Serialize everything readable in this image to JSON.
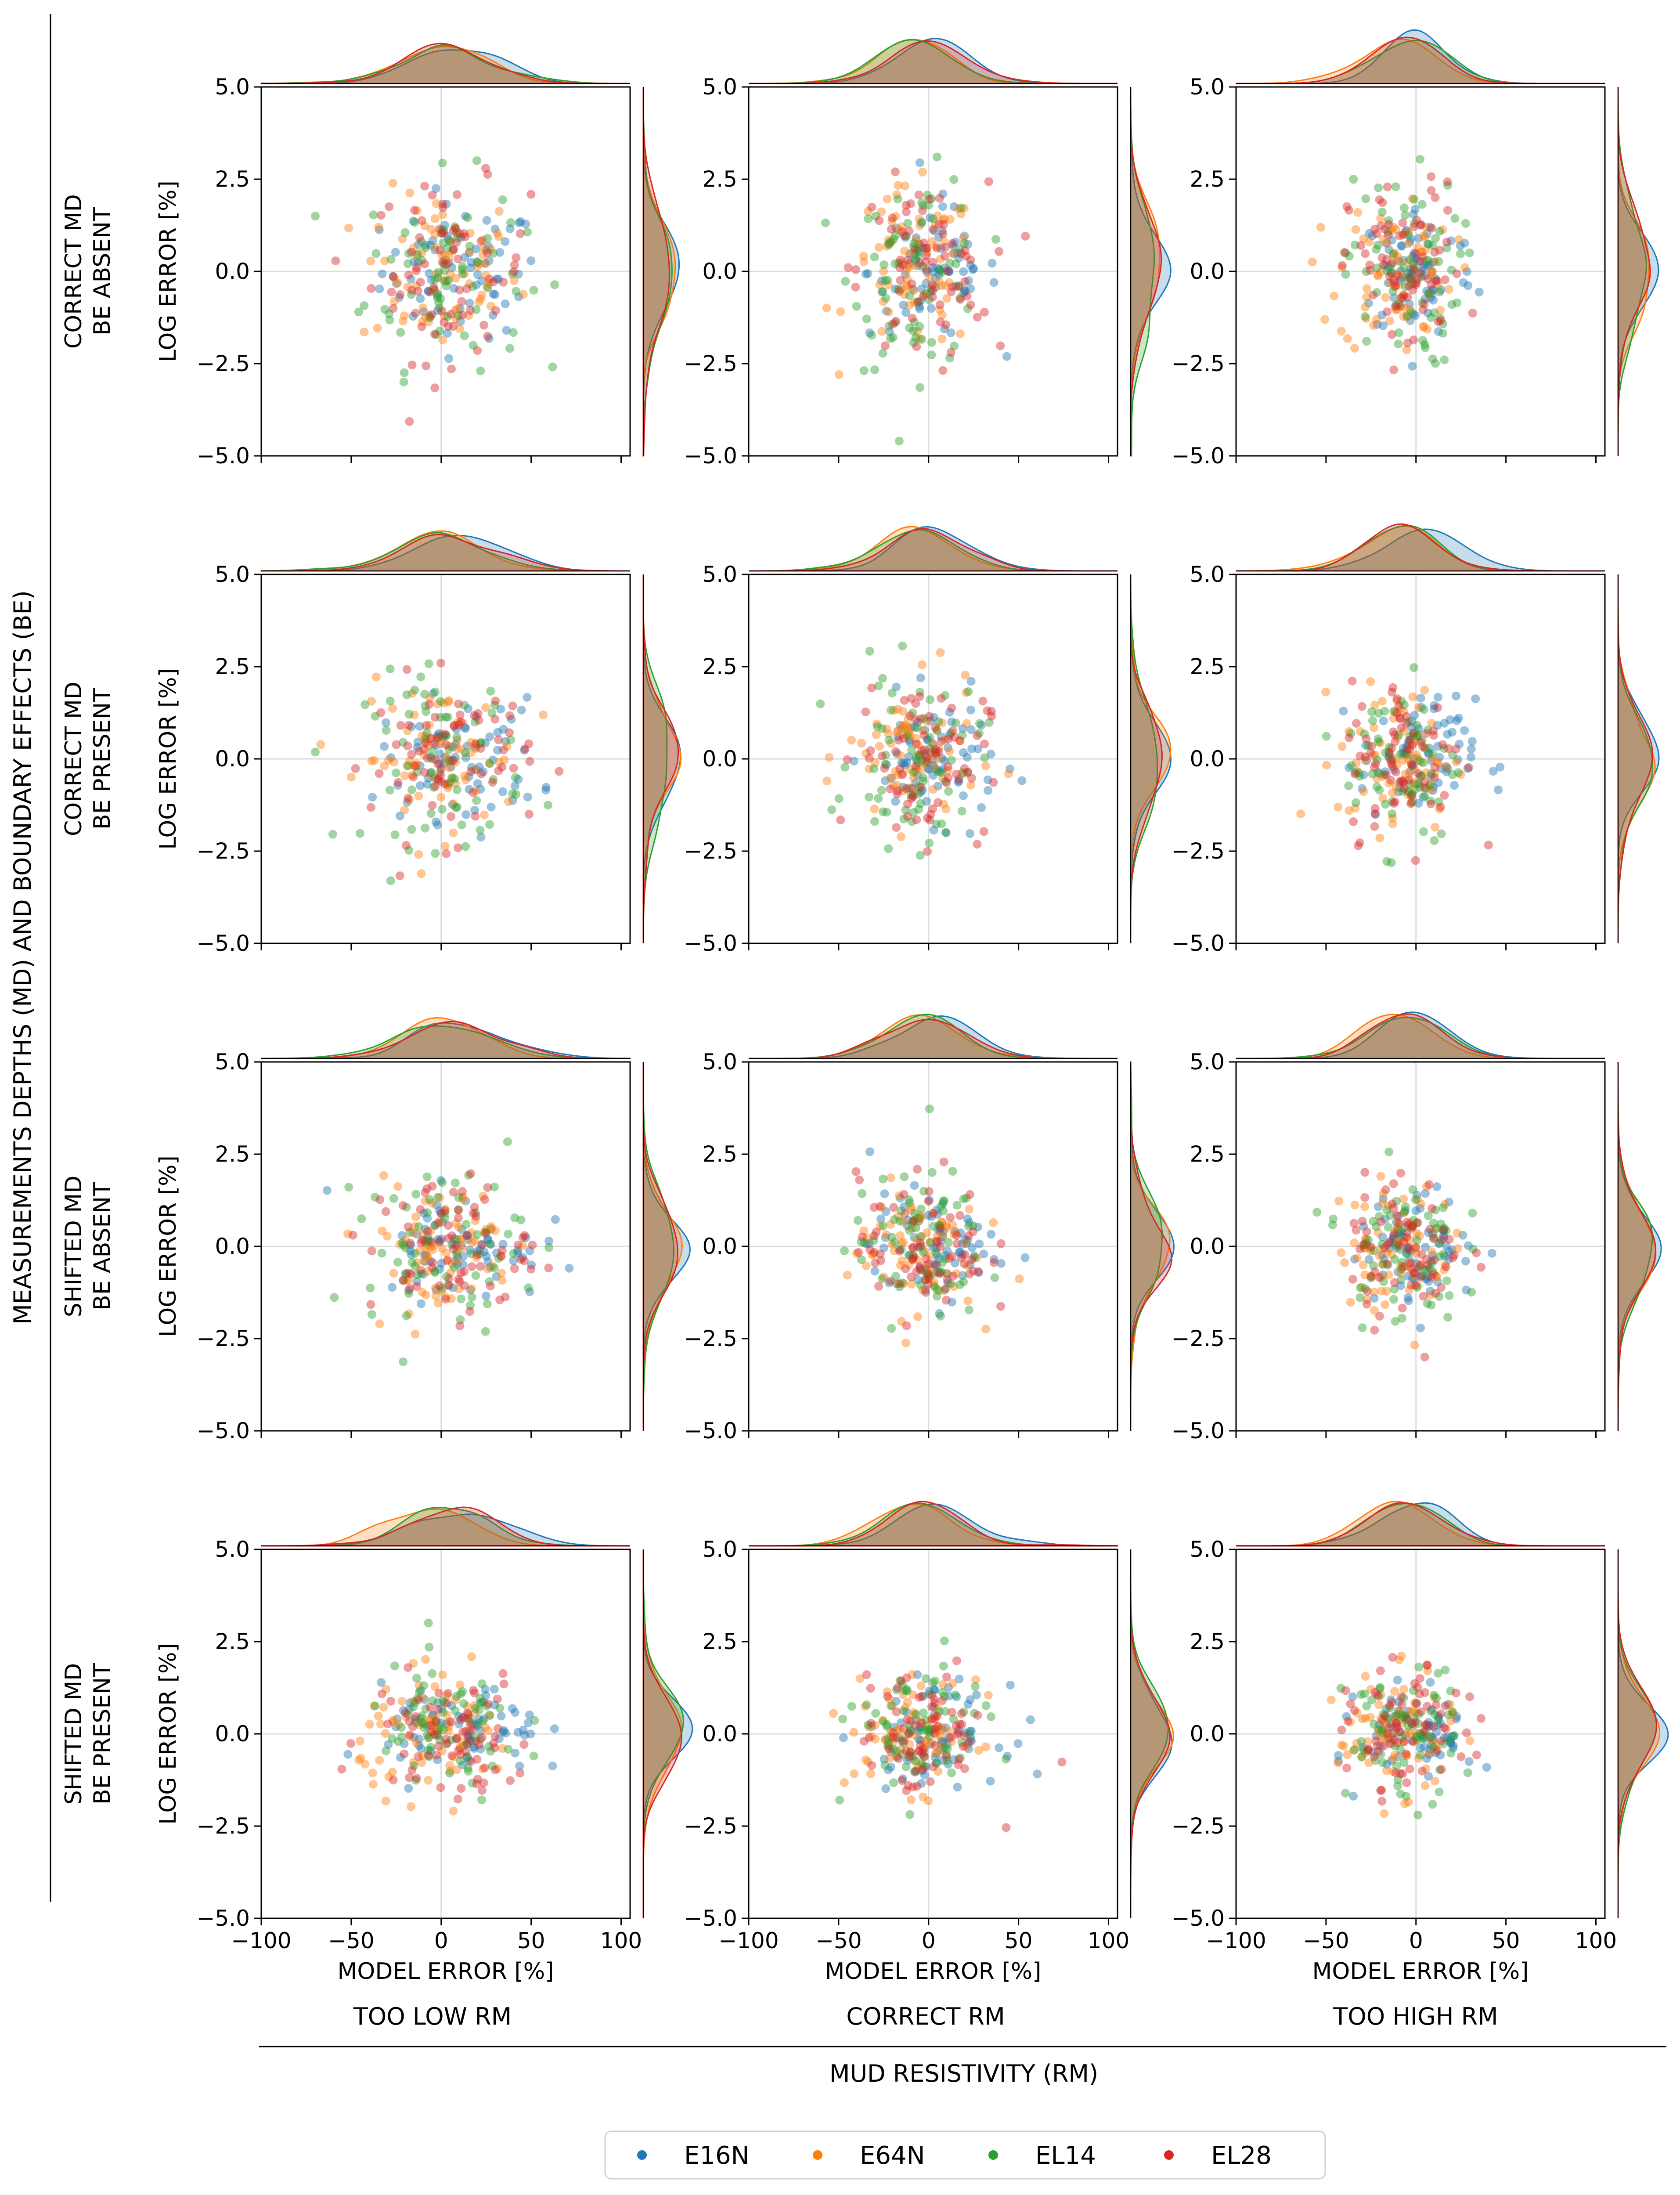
{
  "figure": {
    "y_group_title": "MEASUREMENTS DEPTHS (MD) AND BOUNDARY EFFECTS (BE)",
    "x_group_title": "MUD RESISTIVITY (RM)"
  },
  "legend": [
    {
      "name": "E16N",
      "color": "#1f77b4"
    },
    {
      "name": "E64N",
      "color": "#ff7f0e"
    },
    {
      "name": "EL14",
      "color": "#2ca02c"
    },
    {
      "name": "EL28",
      "color": "#d62728"
    }
  ],
  "chart_data": {
    "type": "scatter",
    "layout": "4x3 grid of joint plots with marginal KDE curves",
    "rows": [
      {
        "label_line1": "CORRECT MD",
        "label_line2": "BE ABSENT"
      },
      {
        "label_line1": "CORRECT MD",
        "label_line2": "BE PRESENT"
      },
      {
        "label_line1": "SHIFTED MD",
        "label_line2": "BE ABSENT"
      },
      {
        "label_line1": "SHIFTED MD",
        "label_line2": "BE PRESENT"
      }
    ],
    "columns": [
      {
        "label": "TOO LOW RM",
        "x_center": 5,
        "x_spread": 22
      },
      {
        "label": "CORRECT RM",
        "x_center": -3,
        "x_spread": 18
      },
      {
        "label": "TOO HIGH RM",
        "x_center": -5,
        "x_spread": 16
      }
    ],
    "xlabel": "MODEL ERROR [%]",
    "ylabel": "LOG ERROR [%]",
    "xlim": [
      -100,
      105
    ],
    "ylim": [
      -5,
      5
    ],
    "xticks": [
      -100,
      -50,
      0,
      50,
      100
    ],
    "xtick_labels": [
      "−100",
      "−50",
      "0",
      "50",
      "100"
    ],
    "yticks": [
      -5,
      -2.5,
      0,
      2.5,
      5
    ],
    "ytick_labels": [
      "−5.0",
      "−2.5",
      "0.0",
      "2.5",
      "5.0"
    ],
    "reference_lines": {
      "x": 0,
      "y": 0
    },
    "points_per_series": 75,
    "series": [
      {
        "name": "E16N",
        "color": "#1f77b4",
        "x_bias": 6,
        "y_std": 0.9
      },
      {
        "name": "E64N",
        "color": "#ff7f0e",
        "x_bias": -6,
        "y_std": 1.1
      },
      {
        "name": "EL14",
        "color": "#2ca02c",
        "x_bias": -3,
        "y_std": 1.3
      },
      {
        "name": "EL28",
        "color": "#d62728",
        "x_bias": 0,
        "y_std": 1.2
      }
    ]
  }
}
